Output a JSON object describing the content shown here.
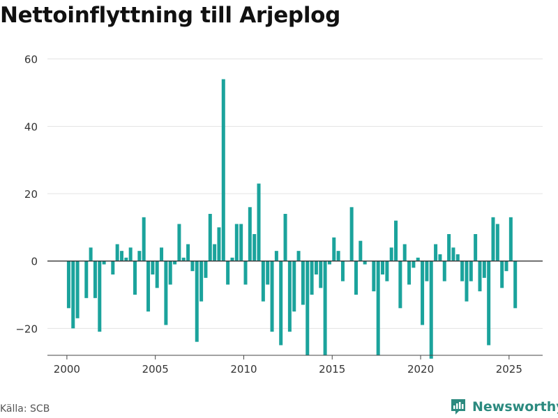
{
  "title": "Nettoinflyttning till Arjeplog",
  "source": "Källa: SCB",
  "brand": "Newsworthy",
  "colors": {
    "bar": "#1ba39c",
    "zero_line": "#333333",
    "grid": "#e3e3e3",
    "brand": "#2b8a7f"
  },
  "chart_data": {
    "type": "bar",
    "title": "Nettoinflyttning till Arjeplog",
    "xlabel": "",
    "ylabel": "",
    "ylim": [
      -28,
      62
    ],
    "xlim": [
      1998.9,
      2026.9
    ],
    "grid": true,
    "legend": "none",
    "y_ticks": [
      -20,
      0,
      20,
      40,
      60
    ],
    "x_ticks": [
      2000,
      2005,
      2010,
      2015,
      2020,
      2025
    ],
    "x": [
      2000.1,
      2000.35,
      2000.6,
      2000.85,
      2001.1,
      2001.35,
      2001.6,
      2001.85,
      2002.1,
      2002.35,
      2002.6,
      2002.85,
      2003.1,
      2003.35,
      2003.6,
      2003.85,
      2004.1,
      2004.35,
      2004.6,
      2004.85,
      2005.1,
      2005.35,
      2005.6,
      2005.85,
      2006.1,
      2006.35,
      2006.6,
      2006.85,
      2007.1,
      2007.35,
      2007.6,
      2007.85,
      2008.1,
      2008.35,
      2008.6,
      2008.85,
      2009.1,
      2009.35,
      2009.6,
      2009.85,
      2010.1,
      2010.35,
      2010.6,
      2010.85,
      2011.1,
      2011.35,
      2011.6,
      2011.85,
      2012.1,
      2012.35,
      2012.6,
      2012.85,
      2013.1,
      2013.35,
      2013.6,
      2013.85,
      2014.1,
      2014.35,
      2014.6,
      2014.85,
      2015.1,
      2015.35,
      2015.6,
      2015.85,
      2016.1,
      2016.35,
      2016.6,
      2016.85,
      2017.1,
      2017.35,
      2017.6,
      2017.85,
      2018.1,
      2018.35,
      2018.6,
      2018.85,
      2019.1,
      2019.35,
      2019.6,
      2019.85,
      2020.1,
      2020.35,
      2020.6,
      2020.85,
      2021.1,
      2021.35,
      2021.6,
      2021.85,
      2022.1,
      2022.35,
      2022.6,
      2022.85,
      2023.1,
      2023.35,
      2023.6,
      2023.85,
      2024.1,
      2024.35,
      2024.6,
      2024.85,
      2025.1,
      2025.35
    ],
    "values": [
      -14,
      -20,
      -17,
      0,
      -11,
      4,
      -11,
      -21,
      -1,
      0,
      -4,
      5,
      3,
      1,
      4,
      -10,
      3,
      13,
      -15,
      -4,
      -8,
      4,
      -19,
      -7,
      -1,
      11,
      1,
      5,
      -3,
      -24,
      -12,
      -5,
      14,
      5,
      10,
      54,
      -7,
      1,
      11,
      11,
      -7,
      16,
      8,
      23,
      -12,
      -7,
      -21,
      3,
      -25,
      14,
      -21,
      -15,
      3,
      -13,
      -28,
      -10,
      -4,
      -8,
      -28,
      -1,
      7,
      3,
      -6,
      0,
      16,
      -10,
      6,
      -1,
      0,
      -9,
      -28,
      -4,
      -6,
      4,
      12,
      -14,
      5,
      -7,
      -2,
      1,
      -19,
      -6,
      -29,
      5,
      2,
      -6,
      8,
      4,
      2,
      -6,
      -12,
      -6,
      8,
      -9,
      -5,
      -25,
      13,
      11,
      -8,
      -3,
      13,
      -14
    ]
  }
}
